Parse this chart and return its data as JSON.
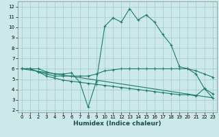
{
  "xlabel": "Humidex (Indice chaleur)",
  "background_color": "#cce8e8",
  "line_color": "#1a7a6e",
  "grid_color": "#99cccc",
  "xlim": [
    -0.5,
    23.5
  ],
  "ylim": [
    1.8,
    12.5
  ],
  "xticks": [
    0,
    1,
    2,
    3,
    4,
    5,
    6,
    7,
    8,
    9,
    10,
    11,
    12,
    13,
    14,
    15,
    16,
    17,
    18,
    19,
    20,
    21,
    22,
    23
  ],
  "yticks": [
    2,
    3,
    4,
    5,
    6,
    7,
    8,
    9,
    10,
    11,
    12
  ],
  "line1_x": [
    0,
    1,
    2,
    3,
    4,
    5,
    6,
    7,
    8,
    9,
    10,
    11,
    12,
    13,
    14,
    15,
    16,
    17,
    18,
    19,
    20,
    21,
    22,
    23
  ],
  "line1_y": [
    6.0,
    6.0,
    6.0,
    5.7,
    5.5,
    5.5,
    5.6,
    4.7,
    2.3,
    4.8,
    10.1,
    10.9,
    10.5,
    11.8,
    10.7,
    11.2,
    10.5,
    9.3,
    8.3,
    6.2,
    6.0,
    5.5,
    4.1,
    3.6
  ],
  "line2_x": [
    0,
    1,
    2,
    3,
    4,
    5,
    6,
    7,
    8,
    9,
    10,
    11,
    12,
    13,
    14,
    15,
    16,
    17,
    18,
    19,
    20,
    21,
    22,
    23
  ],
  "line2_y": [
    6.0,
    6.0,
    5.7,
    5.5,
    5.3,
    5.3,
    5.3,
    5.3,
    5.3,
    5.5,
    5.8,
    5.9,
    6.0,
    6.0,
    6.0,
    6.0,
    6.0,
    6.0,
    6.0,
    6.0,
    6.0,
    5.8,
    5.5,
    5.2
  ],
  "line3_x": [
    0,
    1,
    2,
    3,
    4,
    5,
    6,
    7,
    8,
    9,
    10,
    11,
    12,
    13,
    14,
    15,
    16,
    17,
    18,
    19,
    20,
    21,
    22,
    23
  ],
  "line3_y": [
    6.0,
    6.0,
    5.7,
    5.3,
    5.1,
    4.9,
    4.8,
    4.7,
    4.6,
    4.5,
    4.4,
    4.3,
    4.2,
    4.1,
    4.0,
    3.9,
    3.8,
    3.7,
    3.6,
    3.5,
    3.5,
    3.4,
    4.1,
    3.2
  ],
  "line4_x": [
    0,
    23
  ],
  "line4_y": [
    6.0,
    3.2
  ]
}
